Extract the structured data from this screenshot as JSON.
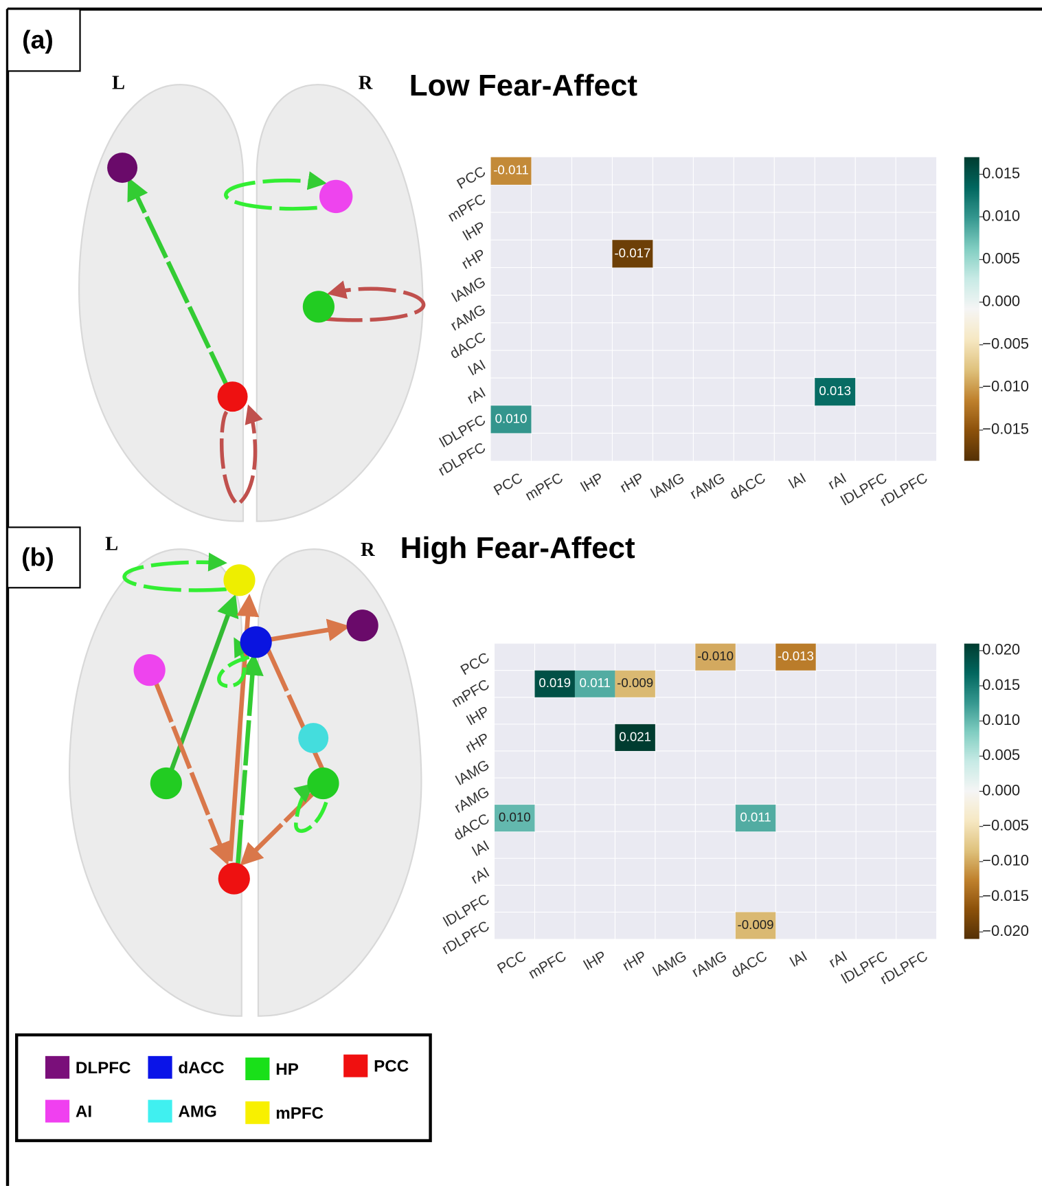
{
  "panels": [
    {
      "label": "(a)",
      "left": "L",
      "right": "R"
    },
    {
      "label": "(b)",
      "left": "L",
      "right": "R"
    }
  ],
  "chart_data": [
    {
      "type": "heatmap",
      "title": "Low Fear-Affect",
      "x_categories": [
        "PCC",
        "mPFC",
        "lHP",
        "rHP",
        "lAMG",
        "rAMG",
        "dACC",
        "lAI",
        "rAI",
        "lDLPFC",
        "rDLPFC"
      ],
      "y_categories": [
        "PCC",
        "mPFC",
        "lHP",
        "rHP",
        "lAMG",
        "rAMG",
        "dACC",
        "lAI",
        "rAI",
        "lDLPFC",
        "rDLPFC"
      ],
      "values": [
        [
          -0.011,
          null,
          null,
          null,
          null,
          null,
          null,
          null,
          null,
          null,
          null
        ],
        [
          null,
          null,
          null,
          null,
          null,
          null,
          null,
          null,
          null,
          null,
          null
        ],
        [
          null,
          null,
          null,
          null,
          null,
          null,
          null,
          null,
          null,
          null,
          null
        ],
        [
          null,
          null,
          null,
          -0.017,
          null,
          null,
          null,
          null,
          null,
          null,
          null
        ],
        [
          null,
          null,
          null,
          null,
          null,
          null,
          null,
          null,
          null,
          null,
          null
        ],
        [
          null,
          null,
          null,
          null,
          null,
          null,
          null,
          null,
          null,
          null,
          null
        ],
        [
          null,
          null,
          null,
          null,
          null,
          null,
          null,
          null,
          null,
          null,
          null
        ],
        [
          null,
          null,
          null,
          null,
          null,
          null,
          null,
          null,
          null,
          null,
          null
        ],
        [
          null,
          null,
          null,
          null,
          null,
          null,
          null,
          null,
          0.013,
          null,
          null
        ],
        [
          0.01,
          null,
          null,
          null,
          null,
          null,
          null,
          null,
          null,
          null,
          null
        ],
        [
          null,
          null,
          null,
          null,
          null,
          null,
          null,
          null,
          null,
          null,
          null
        ]
      ],
      "value_labels": [
        [
          "-0.011",
          null,
          null,
          null,
          null,
          null,
          null,
          null,
          null,
          null,
          null
        ],
        [
          null,
          null,
          null,
          null,
          null,
          null,
          null,
          null,
          null,
          null,
          null
        ],
        [
          null,
          null,
          null,
          null,
          null,
          null,
          null,
          null,
          null,
          null,
          null
        ],
        [
          null,
          null,
          null,
          "-0.017",
          null,
          null,
          null,
          null,
          null,
          null,
          null
        ],
        [
          null,
          null,
          null,
          null,
          null,
          null,
          null,
          null,
          null,
          null,
          null
        ],
        [
          null,
          null,
          null,
          null,
          null,
          null,
          null,
          null,
          null,
          null,
          null
        ],
        [
          null,
          null,
          null,
          null,
          null,
          null,
          null,
          null,
          null,
          null,
          null
        ],
        [
          null,
          null,
          null,
          null,
          null,
          null,
          null,
          null,
          null,
          null,
          null
        ],
        [
          null,
          null,
          null,
          null,
          null,
          null,
          null,
          null,
          "0.013",
          null,
          null
        ],
        [
          "0.010",
          null,
          null,
          null,
          null,
          null,
          null,
          null,
          null,
          null,
          null
        ],
        [
          null,
          null,
          null,
          null,
          null,
          null,
          null,
          null,
          null,
          null,
          null
        ]
      ],
      "colormap": "BrBG",
      "clim": [
        -0.0186,
        0.017
      ],
      "cticks": [
        0.015,
        {
          "value": 0.01,
          "label": "0.010"
        },
        0.005,
        {
          "value": 0,
          "label": "0.000"
        },
        {
          "value": -0.005,
          "label": "−0.005"
        },
        {
          "value": -0.01,
          "label": "−0.010"
        },
        {
          "value": -0.015,
          "label": "−0.015"
        }
      ]
    },
    {
      "type": "heatmap",
      "title": "High Fear-Affect",
      "x_categories": [
        "PCC",
        "mPFC",
        "lHP",
        "rHP",
        "lAMG",
        "rAMG",
        "dACC",
        "lAI",
        "rAI",
        "lDLPFC",
        "rDLPFC"
      ],
      "y_categories": [
        "PCC",
        "mPFC",
        "lHP",
        "rHP",
        "lAMG",
        "rAMG",
        "dACC",
        "lAI",
        "rAI",
        "lDLPFC",
        "rDLPFC"
      ],
      "values": [
        [
          null,
          null,
          null,
          null,
          null,
          -0.01,
          null,
          -0.013,
          null,
          null,
          null
        ],
        [
          null,
          0.019,
          0.011,
          -0.009,
          null,
          null,
          null,
          null,
          null,
          null,
          null
        ],
        [
          null,
          null,
          null,
          null,
          null,
          null,
          null,
          null,
          null,
          null,
          null
        ],
        [
          null,
          null,
          null,
          0.021,
          null,
          null,
          null,
          null,
          null,
          null,
          null
        ],
        [
          null,
          null,
          null,
          null,
          null,
          null,
          null,
          null,
          null,
          null,
          null
        ],
        [
          null,
          null,
          null,
          null,
          null,
          null,
          null,
          null,
          null,
          null,
          null
        ],
        [
          0.01,
          null,
          null,
          null,
          null,
          null,
          0.011,
          null,
          null,
          null,
          null
        ],
        [
          null,
          null,
          null,
          null,
          null,
          null,
          null,
          null,
          null,
          null,
          null
        ],
        [
          null,
          null,
          null,
          null,
          null,
          null,
          null,
          null,
          null,
          null,
          null
        ],
        [
          null,
          null,
          null,
          null,
          null,
          null,
          null,
          null,
          null,
          null,
          null
        ],
        [
          null,
          null,
          null,
          null,
          null,
          null,
          -0.009,
          null,
          null,
          null,
          null
        ]
      ],
      "value_labels": [
        [
          null,
          null,
          null,
          null,
          null,
          "-0.010",
          null,
          "-0.013",
          null,
          null,
          null
        ],
        [
          null,
          "0.019",
          "0.011",
          "-0.009",
          null,
          null,
          null,
          null,
          null,
          null,
          null
        ],
        [
          null,
          null,
          null,
          null,
          null,
          null,
          null,
          null,
          null,
          null,
          null
        ],
        [
          null,
          null,
          null,
          "0.021",
          null,
          null,
          null,
          null,
          null,
          null,
          null
        ],
        [
          null,
          null,
          null,
          null,
          null,
          null,
          null,
          null,
          null,
          null,
          null
        ],
        [
          null,
          null,
          null,
          null,
          null,
          null,
          null,
          null,
          null,
          null,
          null
        ],
        [
          "0.010",
          null,
          null,
          null,
          null,
          null,
          "0.011",
          null,
          null,
          null,
          null
        ],
        [
          null,
          null,
          null,
          null,
          null,
          null,
          null,
          null,
          null,
          null,
          null
        ],
        [
          null,
          null,
          null,
          null,
          null,
          null,
          null,
          null,
          null,
          null,
          null
        ],
        [
          null,
          null,
          null,
          null,
          null,
          null,
          null,
          null,
          null,
          null,
          null
        ],
        [
          null,
          null,
          null,
          null,
          null,
          null,
          "-0.009",
          null,
          null,
          null,
          null
        ]
      ],
      "colormap": "BrBG",
      "clim": [
        -0.021,
        0.021
      ],
      "cticks": [
        {
          "value": 0.02,
          "label": "0.020"
        },
        0.015,
        {
          "value": 0.01,
          "label": "0.010"
        },
        0.005,
        {
          "value": 0,
          "label": "0.000"
        },
        {
          "value": -0.005,
          "label": "−0.005"
        },
        {
          "value": -0.01,
          "label": "−0.010"
        },
        {
          "value": -0.015,
          "label": "−0.015"
        },
        {
          "value": -0.02,
          "label": "−0.020"
        }
      ]
    }
  ],
  "legend": [
    {
      "name": "DLPFC",
      "color": "#7a0f7a"
    },
    {
      "name": "dACC",
      "color": "#0a14e8"
    },
    {
      "name": "HP",
      "color": "#19e019"
    },
    {
      "name": "PCC",
      "color": "#f01010"
    },
    {
      "name": "AI",
      "color": "#f040f0"
    },
    {
      "name": "AMG",
      "color": "#40f0f0"
    },
    {
      "name": "mPFC",
      "color": "#f8f000"
    }
  ]
}
